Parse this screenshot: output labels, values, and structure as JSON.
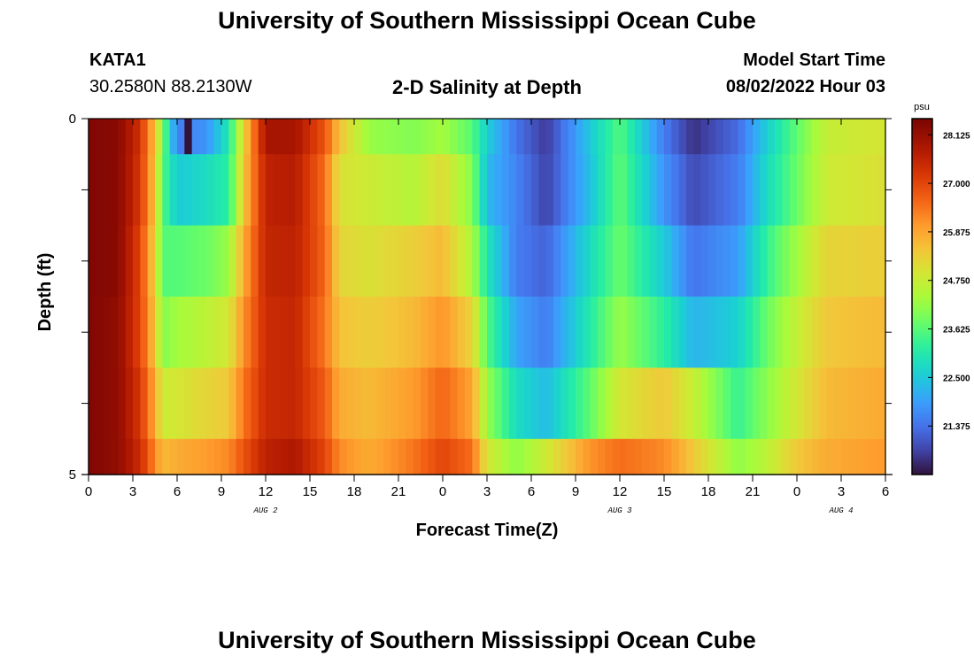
{
  "header": {
    "title": "University of Southern Mississippi Ocean Cube",
    "station": "KATA1",
    "coords": "30.2580N  88.2130W",
    "plot_title": "2-D Salinity at Depth",
    "model_start_label": "Model Start Time",
    "model_start_value": "08/02/2022 Hour 03"
  },
  "footer": {
    "title": "University of Southern Mississippi Ocean Cube"
  },
  "chart_data": {
    "type": "heatmap",
    "title": "2-D Salinity at Depth",
    "xlabel": "Forecast Time(Z)",
    "ylabel": "Depth (ft)",
    "x_tick_labels": [
      "0",
      "3",
      "6",
      "9",
      "12",
      "15",
      "18",
      "21",
      "0",
      "3",
      "6",
      "9",
      "12",
      "15",
      "18",
      "21",
      "0",
      "3",
      "6"
    ],
    "x_range_hours": [
      0,
      54
    ],
    "y_range_ft": [
      0,
      5
    ],
    "y_tick_labels": [
      "0",
      "5"
    ],
    "y_minor_ticks": [
      1,
      2,
      3,
      4
    ],
    "date_labels": [
      {
        "text": "AUG 2",
        "hour": 12
      },
      {
        "text": "AUG 3",
        "hour": 36
      },
      {
        "text": "AUG 4",
        "hour": 51
      }
    ],
    "colorbar": {
      "unit": "psu",
      "min": 20.25,
      "max": 28.5,
      "ticks": [
        "28.125",
        "27.000",
        "25.875",
        "24.750",
        "23.625",
        "22.500",
        "21.375"
      ],
      "tick_values": [
        28.125,
        27.0,
        25.875,
        24.75,
        23.625,
        22.5,
        21.375
      ]
    },
    "hours": [
      0,
      0.5,
      1,
      1.5,
      2,
      2.5,
      3,
      3.5,
      4,
      4.5,
      5,
      5.5,
      6,
      6.5,
      7,
      7.5,
      8,
      8.5,
      9,
      9.5,
      10,
      10.5,
      11,
      11.5,
      12,
      12.5,
      13,
      13.5,
      14,
      14.5,
      15,
      15.5,
      16,
      16.5,
      17,
      17.5,
      18,
      18.5,
      19,
      19.5,
      20,
      20.5,
      21,
      21.5,
      22,
      22.5,
      23,
      23.5,
      24,
      24.5,
      25,
      25.5,
      26,
      26.5,
      27,
      27.5,
      28,
      28.5,
      29,
      29.5,
      30,
      30.5,
      31,
      31.5,
      32,
      32.5,
      33,
      33.5,
      34,
      34.5,
      35,
      35.5,
      36,
      36.5,
      37,
      37.5,
      38,
      38.5,
      39,
      39.5,
      40,
      40.5,
      41,
      41.5,
      42,
      42.5,
      43,
      43.5,
      44,
      44.5,
      45,
      45.5,
      46,
      46.5,
      47,
      47.5,
      48,
      48.5,
      49,
      49.5,
      50,
      50.5,
      51,
      51.5,
      52,
      52.5,
      53,
      53.5
    ],
    "depth_layers": [
      "0-0.5",
      "0.5-1.5",
      "1.5-2.5",
      "2.5-3.5",
      "3.5-4.5",
      "4.5-5"
    ],
    "profile_nodes": {
      "hours": [
        0,
        2,
        3.5,
        4.5,
        5,
        6,
        8,
        9.5,
        10.5,
        12,
        14,
        16,
        17,
        19,
        22,
        24,
        26,
        27,
        29,
        31,
        34,
        36,
        39,
        41,
        44,
        46,
        48,
        50,
        53.5
      ],
      "layer_salinity": [
        [
          28.4,
          28.3,
          27.3,
          25.5,
          24.0,
          21.5,
          21.8,
          23.0,
          25.2,
          27.9,
          27.9,
          26.8,
          25.5,
          24.2,
          24.0,
          24.3,
          23.6,
          22.6,
          21.4,
          20.7,
          22.5,
          23.6,
          21.5,
          20.6,
          21.3,
          22.6,
          23.7,
          24.7,
          24.9
        ],
        [
          28.4,
          28.3,
          27.2,
          25.4,
          23.6,
          22.5,
          22.8,
          23.2,
          25.4,
          27.6,
          27.7,
          26.5,
          25.0,
          24.8,
          24.5,
          25.1,
          24.0,
          22.3,
          21.6,
          20.8,
          22.4,
          23.7,
          21.8,
          20.9,
          21.5,
          22.8,
          23.8,
          24.8,
          25.0
        ],
        [
          28.4,
          28.3,
          27.0,
          25.2,
          23.6,
          23.6,
          23.8,
          24.2,
          25.8,
          27.5,
          27.6,
          26.6,
          25.2,
          25.0,
          25.3,
          25.6,
          24.4,
          23.0,
          21.5,
          21.2,
          22.8,
          23.8,
          22.5,
          21.4,
          21.9,
          23.3,
          24.3,
          25.2,
          25.3
        ],
        [
          28.4,
          28.2,
          27.0,
          25.4,
          24.0,
          24.3,
          24.6,
          24.9,
          26.1,
          27.4,
          27.5,
          26.4,
          25.5,
          25.3,
          25.6,
          26.1,
          25.2,
          23.6,
          22.0,
          21.5,
          23.1,
          24.2,
          23.2,
          22.2,
          22.6,
          23.8,
          24.7,
          25.4,
          25.6
        ],
        [
          28.4,
          28.2,
          27.2,
          25.8,
          24.8,
          24.9,
          25.2,
          25.4,
          26.4,
          27.4,
          27.5,
          26.7,
          25.8,
          25.6,
          26.0,
          26.6,
          25.9,
          24.2,
          22.8,
          22.3,
          23.7,
          24.9,
          25.4,
          24.7,
          23.3,
          24.1,
          24.9,
          25.6,
          25.8
        ],
        [
          28.4,
          28.2,
          27.4,
          26.2,
          25.6,
          25.8,
          26.0,
          26.2,
          26.8,
          27.6,
          27.8,
          27.0,
          26.2,
          25.8,
          26.4,
          27.0,
          26.5,
          24.9,
          24.1,
          24.8,
          26.1,
          26.5,
          26.2,
          25.4,
          24.1,
          24.6,
          25.4,
          25.8,
          26.0
        ]
      ],
      "special_value": {
        "hour": 6.5,
        "layer": "0-0.5",
        "salinity": 20.25
      }
    }
  }
}
